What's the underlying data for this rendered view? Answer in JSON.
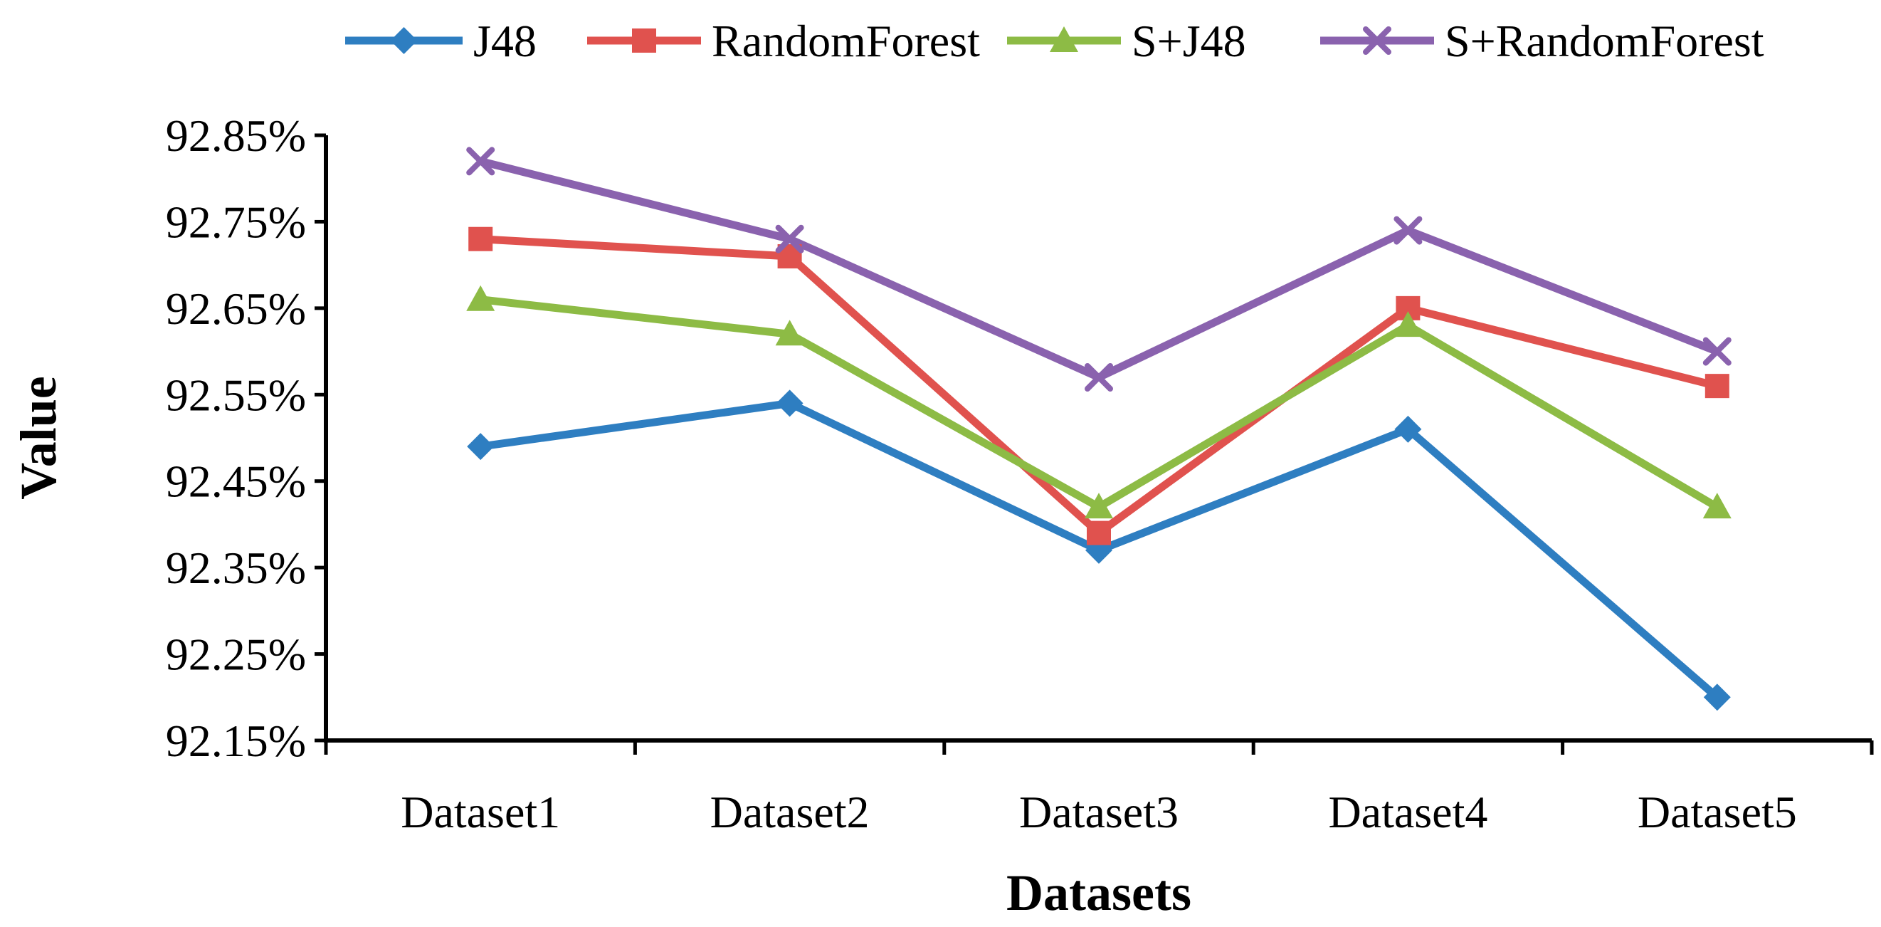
{
  "chart_data": {
    "type": "line",
    "title": "",
    "xlabel": "Datasets",
    "ylabel": "Value",
    "categories": [
      "Dataset1",
      "Dataset2",
      "Dataset3",
      "Dataset4",
      "Dataset5"
    ],
    "ylim": [
      92.15,
      92.85
    ],
    "yticks": [
      {
        "value": 92.15,
        "label": "92.15%"
      },
      {
        "value": 92.25,
        "label": "92.25%"
      },
      {
        "value": 92.35,
        "label": "92.35%"
      },
      {
        "value": 92.45,
        "label": "92.45%"
      },
      {
        "value": 92.55,
        "label": "92.55%"
      },
      {
        "value": 92.65,
        "label": "92.65%"
      },
      {
        "value": 92.75,
        "label": "92.75%"
      },
      {
        "value": 92.85,
        "label": "92.85%"
      }
    ],
    "grid": false,
    "legend_position": "top",
    "series": [
      {
        "name": "J48",
        "color": "#2E7EC1",
        "marker": "diamond",
        "values": [
          92.49,
          92.54,
          92.37,
          92.51,
          92.2
        ]
      },
      {
        "name": "RandomForest",
        "color": "#E0524E",
        "marker": "square",
        "values": [
          92.73,
          92.71,
          92.39,
          92.65,
          92.56
        ]
      },
      {
        "name": "S+J48",
        "color": "#8DBB45",
        "marker": "triangle",
        "values": [
          92.66,
          92.62,
          92.42,
          92.63,
          92.42
        ]
      },
      {
        "name": "S+RandomForest",
        "color": "#8A62AE",
        "marker": "x",
        "values": [
          92.82,
          92.73,
          92.57,
          92.74,
          92.6
        ]
      }
    ]
  }
}
